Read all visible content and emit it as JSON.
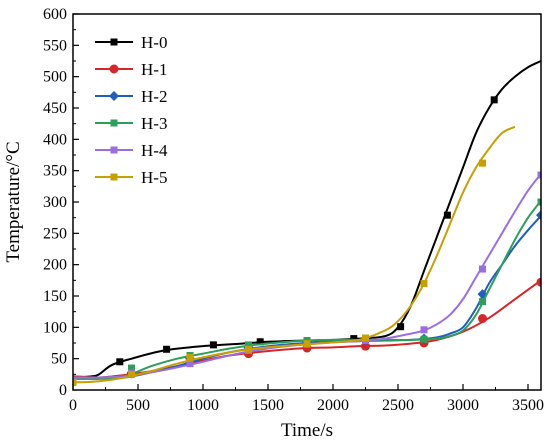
{
  "chart_data": {
    "type": "line",
    "title": "",
    "xlabel": "Time/s",
    "ylabel": "Temperature/°C",
    "xlim": [
      0,
      3600
    ],
    "ylim": [
      0,
      600
    ],
    "xticks": [
      0,
      500,
      1000,
      1500,
      2000,
      2500,
      3000,
      3500
    ],
    "yticks": [
      50,
      100,
      150,
      200,
      250,
      300,
      350,
      400,
      450,
      500,
      550,
      600
    ],
    "y_zero_label": "0",
    "grid": false,
    "legend_position": "top-left",
    "series": [
      {
        "name": "H-0",
        "color": "#000000",
        "marker": "square",
        "x": [
          0,
          150,
          200,
          300,
          450,
          700,
          1000,
          1300,
          1500,
          1800,
          2000,
          2200,
          2400,
          2500,
          2600,
          2700,
          2800,
          2900,
          3000,
          3100,
          3200,
          3300,
          3400,
          3500,
          3600
        ],
        "y": [
          20,
          22,
          25,
          40,
          50,
          63,
          70,
          74,
          77,
          79,
          80,
          82,
          86,
          100,
          135,
          190,
          245,
          300,
          355,
          410,
          450,
          480,
          500,
          515,
          525
        ],
        "markers": [
          [
            360,
            45
          ],
          [
            720,
            65
          ],
          [
            1080,
            72
          ],
          [
            1440,
            77
          ],
          [
            1800,
            79
          ],
          [
            2160,
            82
          ],
          [
            2520,
            101
          ],
          [
            2880,
            279
          ],
          [
            3240,
            463
          ]
        ]
      },
      {
        "name": "H-1",
        "color": "#d62728",
        "marker": "circle",
        "x": [
          0,
          200,
          400,
          600,
          800,
          1000,
          1200,
          1400,
          1600,
          1800,
          2000,
          2200,
          2400,
          2600,
          2800,
          3000,
          3200,
          3400,
          3600
        ],
        "y": [
          22,
          20,
          24,
          30,
          38,
          47,
          55,
          60,
          64,
          67,
          68,
          70,
          71,
          74,
          80,
          93,
          115,
          145,
          175
        ],
        "markers": [
          [
            450,
            26
          ],
          [
            900,
            44
          ],
          [
            1350,
            58
          ],
          [
            1800,
            67
          ],
          [
            2250,
            70
          ],
          [
            2700,
            75
          ],
          [
            3150,
            114
          ],
          [
            3600,
            172
          ]
        ]
      },
      {
        "name": "H-2",
        "color": "#1f5fbf",
        "marker": "diamond",
        "x": [
          0,
          200,
          400,
          600,
          800,
          1000,
          1200,
          1400,
          1600,
          1800,
          2000,
          2200,
          2400,
          2600,
          2800,
          2900,
          3000,
          3100,
          3200,
          3300,
          3400,
          3500,
          3600
        ],
        "y": [
          18,
          18,
          20,
          28,
          38,
          50,
          60,
          67,
          72,
          75,
          77,
          78,
          79,
          80,
          84,
          90,
          100,
          130,
          170,
          200,
          230,
          255,
          278
        ],
        "markers": [
          [
            450,
            27
          ],
          [
            900,
            50
          ],
          [
            1350,
            68
          ],
          [
            1800,
            76
          ],
          [
            2250,
            79
          ],
          [
            2700,
            82
          ],
          [
            3150,
            153
          ],
          [
            3600,
            279
          ]
        ]
      },
      {
        "name": "H-3",
        "color": "#2ca05a",
        "marker": "square",
        "x": [
          0,
          200,
          400,
          600,
          800,
          1000,
          1200,
          1400,
          1600,
          1800,
          2000,
          2200,
          2400,
          2600,
          2800,
          2900,
          3000,
          3100,
          3200,
          3300,
          3400,
          3500,
          3600
        ],
        "y": [
          18,
          18,
          22,
          38,
          50,
          58,
          66,
          72,
          76,
          79,
          80,
          80,
          80,
          80,
          82,
          86,
          95,
          120,
          160,
          200,
          240,
          275,
          302
        ],
        "markers": [
          [
            450,
            35
          ],
          [
            900,
            55
          ],
          [
            1350,
            72
          ],
          [
            1800,
            79
          ],
          [
            2250,
            80
          ],
          [
            2700,
            81
          ],
          [
            3150,
            141
          ],
          [
            3600,
            300
          ]
        ]
      },
      {
        "name": "H-4",
        "color": "#9b6ee0",
        "marker": "square",
        "x": [
          0,
          200,
          400,
          600,
          800,
          1000,
          1200,
          1400,
          1600,
          1800,
          2000,
          2200,
          2400,
          2600,
          2700,
          2800,
          2900,
          3000,
          3100,
          3200,
          3300,
          3400,
          3500,
          3600
        ],
        "y": [
          20,
          20,
          22,
          28,
          36,
          45,
          55,
          63,
          69,
          73,
          76,
          78,
          82,
          90,
          95,
          105,
          120,
          145,
          180,
          215,
          250,
          285,
          318,
          345
        ],
        "markers": [
          [
            450,
            27
          ],
          [
            900,
            42
          ],
          [
            1350,
            63
          ],
          [
            1800,
            73
          ],
          [
            2250,
            79
          ],
          [
            2700,
            96
          ],
          [
            3150,
            193
          ],
          [
            3600,
            343
          ]
        ]
      },
      {
        "name": "H-5",
        "color": "#c8a000",
        "marker": "square",
        "x": [
          0,
          200,
          400,
          600,
          800,
          1000,
          1200,
          1400,
          1600,
          1800,
          2000,
          2200,
          2400,
          2500,
          2600,
          2700,
          2800,
          2900,
          3000,
          3100,
          3200,
          3300,
          3400
        ],
        "y": [
          12,
          14,
          20,
          30,
          42,
          52,
          60,
          66,
          70,
          73,
          76,
          80,
          95,
          110,
          135,
          170,
          215,
          265,
          315,
          355,
          385,
          410,
          420
        ],
        "markers": [
          [
            0,
            12
          ],
          [
            450,
            25
          ],
          [
            900,
            52
          ],
          [
            1350,
            65
          ],
          [
            1800,
            74
          ],
          [
            2250,
            83
          ],
          [
            2700,
            170
          ],
          [
            3150,
            362
          ]
        ]
      }
    ]
  }
}
